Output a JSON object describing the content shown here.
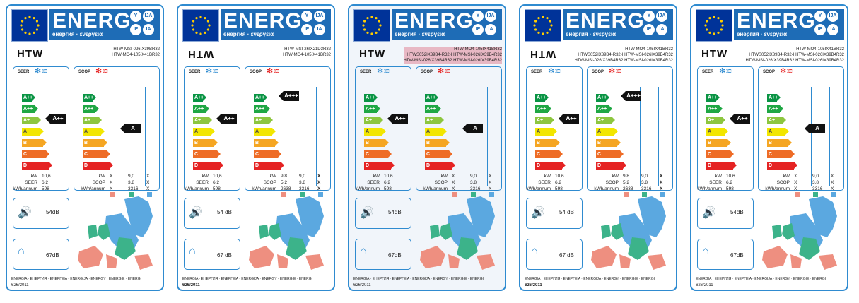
{
  "header": {
    "energ": "ENERG",
    "sub": "енергия · ενεργεια",
    "bubbles": [
      "Y",
      "IJA",
      "IE",
      "IA"
    ],
    "logo": "HTW"
  },
  "scale": [
    "A+++",
    "A++",
    "A+",
    "A",
    "B",
    "C",
    "D"
  ],
  "bar_colors": [
    "#0a9444",
    "#1fa744",
    "#8dc63f",
    "#f2e600",
    "#f5a623",
    "#ee6c26",
    "#e52323"
  ],
  "titles": {
    "seer": "SEER",
    "scop": "SCOP"
  },
  "units": {
    "kw": "kW",
    "seer": "SEER",
    "scop": "SCOP",
    "annual": "kWh/annum"
  },
  "zone_colors": [
    "#ee8f80",
    "#3cb38a",
    "#5ba8e0"
  ],
  "footer": "ENERGIA · ЕНЕРГИЯ · ΕΝΕΡΓΕΙΑ · ENERGIJA · ENERGY · ENERGIE · ENERGI",
  "labels": [
    {
      "models": [
        "HTW-MSI-026IX39BR32",
        "HTW-MO4-105IX41BR32"
      ],
      "seer_class": "A++",
      "scop_class": "A",
      "kw": "10,6",
      "seer": "6,2",
      "annual": "598",
      "scop_rows": [
        [
          "X",
          "9,0",
          "X"
        ],
        [
          "X",
          "3,8",
          "X"
        ],
        [
          "X",
          "3316",
          "X"
        ]
      ],
      "sound_out": "54dB",
      "sound_in": "67dB",
      "reg": "626/2011"
    },
    {
      "models": [
        "HTW-MSI-26IX21D3R32",
        "HTW-MO4-105IX41BR32"
      ],
      "seer_class": "A++",
      "scop_class": "A+++",
      "kw": "10,6",
      "seer": "6,2",
      "annual": "598",
      "scop_rows": [
        [
          "9,8",
          "9,0",
          "X"
        ],
        [
          "5,2",
          "3,8",
          "X"
        ],
        [
          "2638",
          "3316",
          "X"
        ]
      ],
      "sound_out": "54 dB",
      "sound_in": "67 dB",
      "reg": "626/2011"
    },
    {
      "models": [
        "HTW-MO4-105IX41BR32",
        "HTWS052IX39B4-R32-I HTW-MSI-026IX39B4R32",
        "HTW-MSI-026IX39B4R32 HTW-MSI-026IX39B4R32"
      ],
      "seer_class": "A++",
      "scop_class": "A",
      "kw": "10,6",
      "seer": "6,2",
      "annual": "598",
      "scop_rows": [
        [
          "X",
          "9,0",
          "X"
        ],
        [
          "X",
          "3,8",
          "X"
        ],
        [
          "X",
          "3316",
          "X"
        ]
      ],
      "sound_out": "54dB",
      "sound_in": "67dB",
      "reg": "626/2011"
    },
    {
      "models": [
        "HTW-MO4-105IX41BR32",
        "HTWS052IX39B4-R32-I HTW-MSI-026IX39B4R32",
        "HTW-MSI-026IX39B4R32 HTW-MSI-026IX39B4R32"
      ],
      "seer_class": "A++",
      "scop_class": "A+++",
      "kw": "10,6",
      "seer": "6,2",
      "annual": "598",
      "scop_rows": [
        [
          "9,8",
          "9,0",
          "X"
        ],
        [
          "5,2",
          "3,8",
          "X"
        ],
        [
          "2638",
          "3316",
          "X"
        ]
      ],
      "sound_out": "54 dB",
      "sound_in": "67 dB",
      "reg": "626/2011"
    },
    {
      "models": [
        "HTW-MO4-105IX41BR32",
        "HTWS052IX39B4-R32-I HTW-MSI-026IX39B4R32",
        "HTW-MSI-026IX39B4R32 HTW-MSI-026IX39B4R32"
      ],
      "seer_class": "A++",
      "scop_class": "A",
      "kw": "10,6",
      "seer": "6,2",
      "annual": "598",
      "scop_rows": [
        [
          "X",
          "9,0",
          "X"
        ],
        [
          "X",
          "3,8",
          "X"
        ],
        [
          "X",
          "3316",
          "X"
        ]
      ],
      "sound_out": "54dB",
      "sound_in": "67dB",
      "reg": "626/2011"
    }
  ]
}
